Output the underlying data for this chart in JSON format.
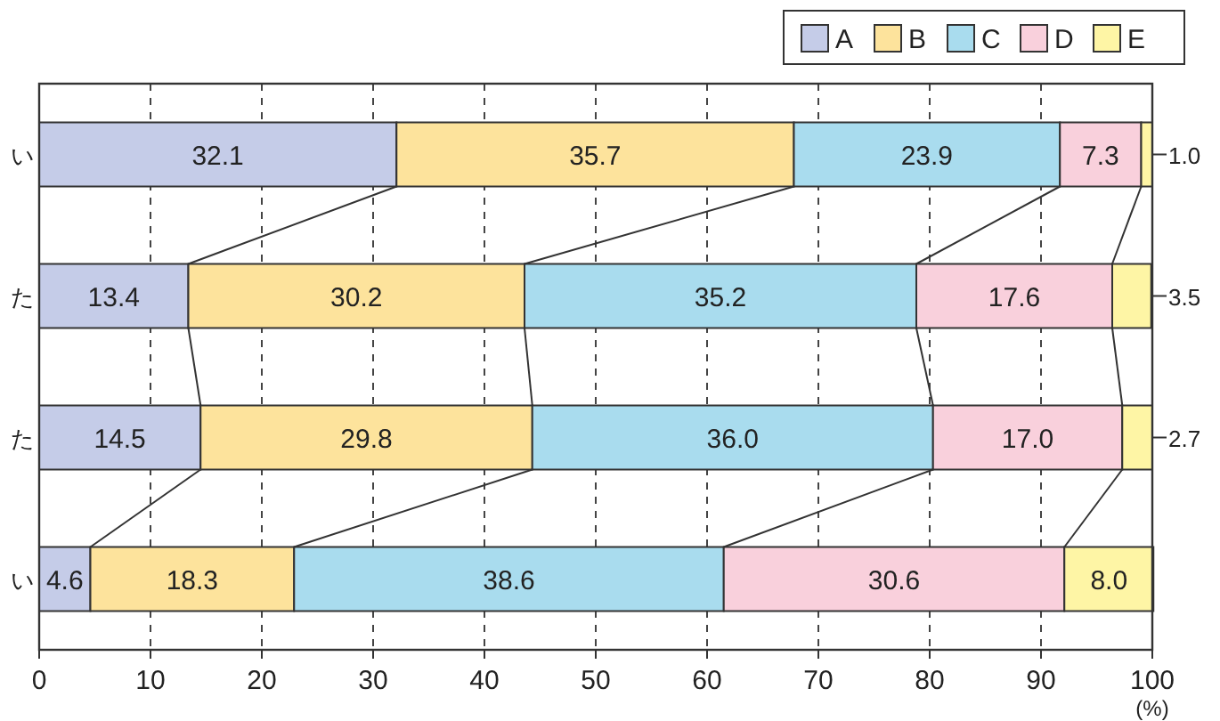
{
  "chart_data": {
    "type": "bar",
    "orientation": "horizontal",
    "stacked": true,
    "categories": [
      "い",
      "た",
      "た",
      "い"
    ],
    "series": [
      {
        "name": "A",
        "color": "#c5cce8",
        "values": [
          32.1,
          13.4,
          14.5,
          4.6
        ],
        "value_labels": [
          "32.1",
          "13.4",
          "14.5",
          "4.6"
        ]
      },
      {
        "name": "B",
        "color": "#fde39c",
        "values": [
          35.7,
          30.2,
          29.8,
          18.3
        ],
        "value_labels": [
          "35.7",
          "30.2",
          "29.8",
          "18.3"
        ]
      },
      {
        "name": "C",
        "color": "#a9dcee",
        "values": [
          23.9,
          35.2,
          36.0,
          38.6
        ],
        "value_labels": [
          "23.9",
          "35.2",
          "36.0",
          "38.6"
        ]
      },
      {
        "name": "D",
        "color": "#f9d0dc",
        "values": [
          7.3,
          17.6,
          17.0,
          30.6
        ],
        "value_labels": [
          "7.3",
          "17.6",
          "17.0",
          "30.6"
        ]
      },
      {
        "name": "E",
        "color": "#fef5a5",
        "values": [
          1.0,
          3.5,
          2.7,
          8.0
        ],
        "value_labels": [
          "1.0",
          "3.5",
          "2.7",
          "8.0"
        ]
      }
    ],
    "xlim": [
      0,
      100
    ],
    "xticks": [
      0,
      10,
      20,
      30,
      40,
      50,
      60,
      70,
      80,
      90,
      100
    ],
    "xlabel": "(%)",
    "grid": "x",
    "legend": "top right"
  }
}
